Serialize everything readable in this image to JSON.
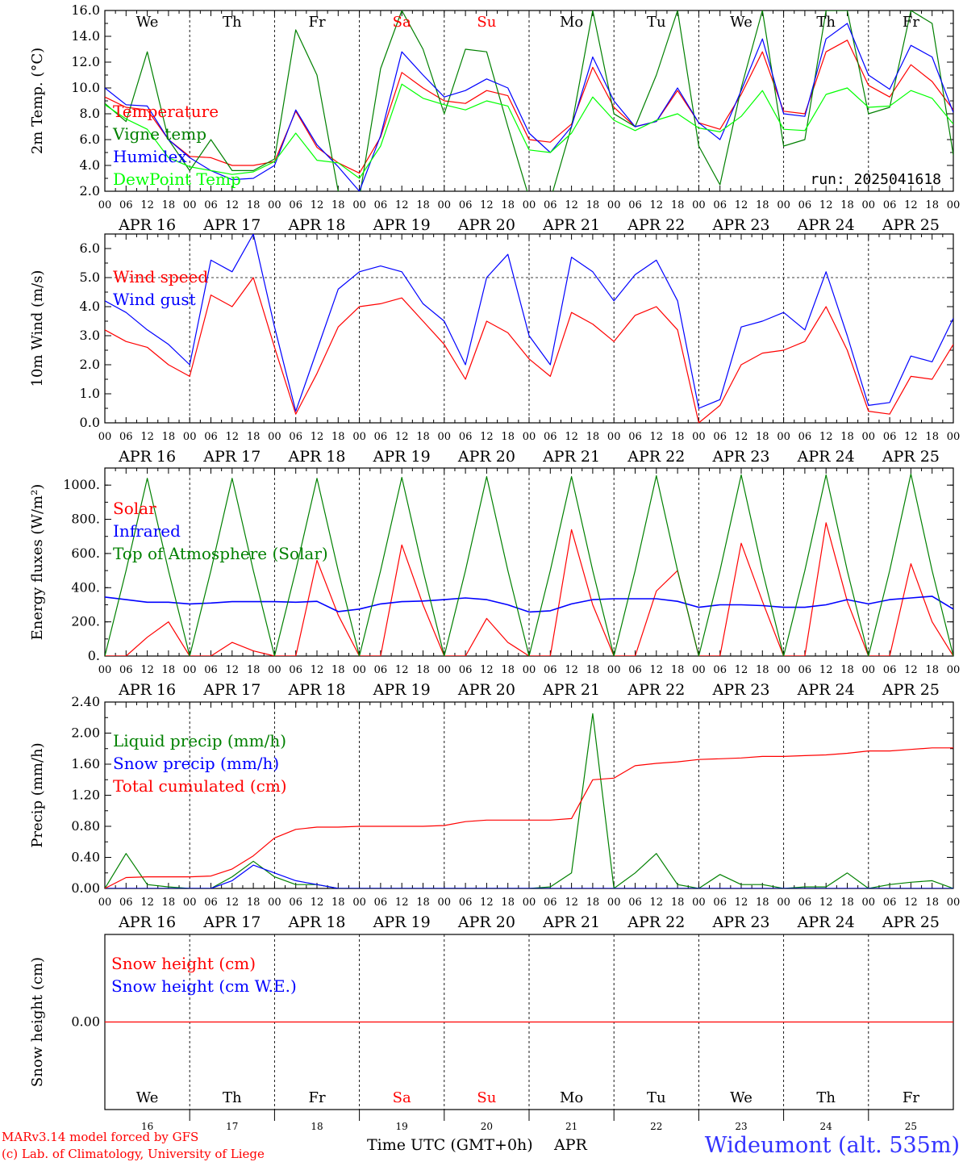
{
  "run_label": "run: 2025041618",
  "credit": [
    "MARv3.14 model forced by GFS",
    "(c) Lab. of Climatology, University of Liege"
  ],
  "station": "Wideumont (alt. 535m)",
  "xaxis_title": "Time UTC (GMT+0h)",
  "month": "APR",
  "days": [
    {
      "date": "APR 16",
      "num": "16",
      "name": "We",
      "weekend": false
    },
    {
      "date": "APR 17",
      "num": "17",
      "name": "Th",
      "weekend": false
    },
    {
      "date": "APR 18",
      "num": "18",
      "name": "Fr",
      "weekend": false
    },
    {
      "date": "APR 19",
      "num": "19",
      "name": "Sa",
      "weekend": true
    },
    {
      "date": "APR 20",
      "num": "20",
      "name": "Su",
      "weekend": true
    },
    {
      "date": "APR 21",
      "num": "21",
      "name": "Mo",
      "weekend": false
    },
    {
      "date": "APR 22",
      "num": "22",
      "name": "Tu",
      "weekend": false
    },
    {
      "date": "APR 23",
      "num": "23",
      "name": "We",
      "weekend": false
    },
    {
      "date": "APR 24",
      "num": "24",
      "name": "Th",
      "weekend": false
    },
    {
      "date": "APR 25",
      "num": "25",
      "name": "Fr",
      "weekend": false
    }
  ],
  "hour_ticks": [
    "00",
    "06",
    "12",
    "18"
  ],
  "last_tick": "00",
  "colors": {
    "red": "#ff0000",
    "green": "#008000",
    "blue": "#0000ff",
    "lime": "#00ff00",
    "title_blue": "#3333ff"
  },
  "chart_data": [
    {
      "type": "line",
      "ylabel": "2m Temp. (°C)",
      "ylim": [
        2.0,
        16.0
      ],
      "yticks": [
        "2.0",
        "4.0",
        "6.0",
        "8.0",
        "10.0",
        "12.0",
        "14.0",
        "16.0"
      ],
      "show_day_names": true,
      "x_unit": "hours since APR 16 00 UTC (every 6 h)",
      "series": [
        {
          "name": "Temperature",
          "color": "#ff0000",
          "values": [
            9.3,
            8.5,
            8.3,
            6.0,
            4.7,
            4.6,
            4.0,
            4.0,
            4.3,
            8.2,
            5.4,
            4.2,
            3.4,
            6.2,
            11.2,
            10.0,
            9.0,
            8.8,
            9.8,
            9.4,
            6.0,
            5.8,
            7.2,
            11.6,
            8.5,
            7.0,
            7.4,
            9.8,
            7.3,
            6.8,
            9.5,
            12.8,
            8.2,
            8.0,
            12.8,
            13.7,
            10.2,
            9.3,
            11.8,
            10.5,
            8.3
          ]
        },
        {
          "name": "Vigne temp",
          "color": "#008000",
          "values": [
            8.8,
            7.4,
            12.8,
            6.0,
            3.6,
            6.0,
            3.6,
            3.6,
            4.5,
            14.5,
            11.0,
            2.0,
            1.5,
            11.5,
            16.0,
            13.0,
            8.0,
            13.0,
            12.8,
            7.0,
            1.5,
            1.3,
            7.0,
            16.0,
            8.0,
            7.0,
            11.0,
            16.0,
            5.5,
            2.5,
            10.0,
            16.0,
            5.5,
            6.0,
            16.0,
            16.0,
            8.0,
            8.5,
            16.0,
            15.0,
            4.8
          ]
        },
        {
          "name": "Humidex",
          "color": "#0000ff",
          "values": [
            10.0,
            8.7,
            8.6,
            6.0,
            4.6,
            3.6,
            2.9,
            3.0,
            4.0,
            8.3,
            5.6,
            3.9,
            2.0,
            6.3,
            12.8,
            11.0,
            9.3,
            9.8,
            10.7,
            10.0,
            6.5,
            5.0,
            7.0,
            12.4,
            9.0,
            7.0,
            7.4,
            10.0,
            7.3,
            6.0,
            9.8,
            13.8,
            8.0,
            7.8,
            13.8,
            15.0,
            11.0,
            9.9,
            13.3,
            12.4,
            8.1
          ]
        },
        {
          "name": "DewPoint Temp",
          "color": "#00ff00",
          "values": [
            8.7,
            7.6,
            6.8,
            4.6,
            3.9,
            3.6,
            3.3,
            3.5,
            4.3,
            6.5,
            4.4,
            4.2,
            3.0,
            5.5,
            10.3,
            9.2,
            8.7,
            8.3,
            9.0,
            8.6,
            5.2,
            5.0,
            6.5,
            9.3,
            7.5,
            6.7,
            7.5,
            8.0,
            6.9,
            6.6,
            7.8,
            9.8,
            6.8,
            6.7,
            9.5,
            10.0,
            8.5,
            8.6,
            9.8,
            9.2,
            7.2
          ]
        }
      ]
    },
    {
      "type": "line",
      "ylabel": "10m Wind (m/s)",
      "ylim": [
        0.0,
        6.5
      ],
      "yticks": [
        "0.0",
        "1.0",
        "2.0",
        "3.0",
        "4.0",
        "5.0",
        "6.0"
      ],
      "hline": 5.0,
      "show_day_names": false,
      "x_unit": "hours since APR 16 00 UTC (every 6 h)",
      "series": [
        {
          "name": "Wind speed",
          "color": "#ff0000",
          "values": [
            3.2,
            2.8,
            2.6,
            2.0,
            1.6,
            4.4,
            4.0,
            5.0,
            2.6,
            0.3,
            1.7,
            3.3,
            4.0,
            4.1,
            4.3,
            3.5,
            2.7,
            1.5,
            3.5,
            3.1,
            2.2,
            1.6,
            3.8,
            3.4,
            2.8,
            3.7,
            4.0,
            3.2,
            0.0,
            0.6,
            2.0,
            2.4,
            2.5,
            2.8,
            4.0,
            2.5,
            0.4,
            0.3,
            1.6,
            1.5,
            2.7
          ]
        },
        {
          "name": "Wind gust",
          "color": "#0000ff",
          "values": [
            4.2,
            3.8,
            3.2,
            2.7,
            2.0,
            5.6,
            5.2,
            6.5,
            3.3,
            0.4,
            2.5,
            4.6,
            5.2,
            5.4,
            5.2,
            4.1,
            3.5,
            2.0,
            5.0,
            5.8,
            3.0,
            2.0,
            5.7,
            5.2,
            4.2,
            5.1,
            5.6,
            4.2,
            0.5,
            0.8,
            3.3,
            3.5,
            3.8,
            3.2,
            5.2,
            3.0,
            0.6,
            0.7,
            2.3,
            2.1,
            3.6
          ]
        }
      ]
    },
    {
      "type": "line",
      "ylabel": "Energy fluxes (W/m²)",
      "ylim": [
        0,
        1100
      ],
      "yticks": [
        "0.",
        "200.",
        "400.",
        "600.",
        "800.",
        "1000."
      ],
      "show_day_names": false,
      "x_unit": "hours since APR 16 00 UTC (every 6 h)",
      "series": [
        {
          "name": "Solar",
          "color": "#ff0000",
          "values": [
            0,
            0,
            110,
            200,
            0,
            0,
            80,
            30,
            0,
            0,
            560,
            240,
            0,
            0,
            650,
            300,
            0,
            0,
            220,
            80,
            0,
            0,
            740,
            300,
            0,
            0,
            380,
            500,
            0,
            0,
            660,
            320,
            0,
            0,
            780,
            320,
            0,
            0,
            540,
            200,
            0
          ]
        },
        {
          "name": "Infrared",
          "color": "#0000ff",
          "values": [
            345,
            330,
            315,
            315,
            305,
            310,
            318,
            318,
            318,
            315,
            320,
            260,
            275,
            305,
            318,
            322,
            330,
            340,
            330,
            300,
            258,
            265,
            305,
            330,
            335,
            335,
            335,
            320,
            285,
            300,
            300,
            295,
            285,
            285,
            300,
            330,
            305,
            330,
            340,
            350,
            275
          ]
        },
        {
          "name": "Top of Atmosphere (Solar)",
          "color": "#008000",
          "values": [
            0,
            500,
            1040,
            500,
            0,
            500,
            1040,
            500,
            0,
            500,
            1040,
            500,
            0,
            500,
            1045,
            500,
            0,
            500,
            1050,
            500,
            0,
            500,
            1050,
            500,
            0,
            500,
            1055,
            500,
            0,
            500,
            1060,
            500,
            0,
            500,
            1060,
            500,
            0,
            500,
            1065,
            500,
            0
          ]
        }
      ]
    },
    {
      "type": "line",
      "ylabel": "Precip (mm/h)",
      "ylim": [
        0.0,
        2.4
      ],
      "yticks": [
        "0.00",
        "0.40",
        "0.80",
        "1.20",
        "1.60",
        "2.00",
        "2.40"
      ],
      "show_day_names": false,
      "x_unit": "hours since APR 16 00 UTC (every 6 h)",
      "series": [
        {
          "name": "Liquid precip (mm/h)",
          "color": "#008000",
          "values": [
            0,
            0.45,
            0.05,
            0.02,
            0,
            0,
            0.15,
            0.35,
            0.15,
            0.05,
            0.05,
            0,
            0,
            0,
            0,
            0,
            0,
            0,
            0,
            0,
            0,
            0.02,
            0.2,
            2.25,
            0,
            0.2,
            0.45,
            0.05,
            0,
            0.18,
            0.05,
            0.05,
            0,
            0.02,
            0.02,
            0.2,
            0,
            0.05,
            0.08,
            0.1,
            0
          ]
        },
        {
          "name": "Snow precip (mm/h)",
          "color": "#0000ff",
          "values": [
            0,
            0,
            0,
            0,
            0,
            0,
            0.1,
            0.3,
            0.2,
            0.1,
            0.05,
            0,
            0,
            0,
            0,
            0,
            0,
            0,
            0,
            0,
            0,
            0,
            0,
            0,
            0,
            0,
            0,
            0,
            0,
            0,
            0,
            0,
            0,
            0,
            0,
            0,
            0,
            0,
            0,
            0,
            0
          ]
        },
        {
          "name": "Total cumulated (cm)",
          "color": "#ff0000",
          "values": [
            0,
            0.14,
            0.15,
            0.15,
            0.15,
            0.16,
            0.25,
            0.42,
            0.65,
            0.76,
            0.79,
            0.79,
            0.8,
            0.8,
            0.8,
            0.8,
            0.81,
            0.86,
            0.88,
            0.88,
            0.88,
            0.88,
            0.9,
            1.4,
            1.42,
            1.58,
            1.61,
            1.63,
            1.66,
            1.67,
            1.68,
            1.7,
            1.7,
            1.71,
            1.72,
            1.74,
            1.77,
            1.77,
            1.79,
            1.81,
            1.81
          ]
        }
      ]
    },
    {
      "type": "line",
      "ylabel": "Snow height (cm)",
      "ylim": [
        -1.0,
        1.0
      ],
      "yticks": [
        "0.00"
      ],
      "show_day_names": true,
      "x_unit": "hours since APR 16 00 UTC (every 6 h)",
      "series": [
        {
          "name": "Snow height (cm)",
          "color": "#ff0000",
          "values": [
            0,
            0,
            0,
            0,
            0,
            0,
            0,
            0,
            0,
            0,
            0,
            0,
            0,
            0,
            0,
            0,
            0,
            0,
            0,
            0,
            0,
            0,
            0,
            0,
            0,
            0,
            0,
            0,
            0,
            0,
            0,
            0,
            0,
            0,
            0,
            0,
            0,
            0,
            0,
            0,
            0
          ]
        },
        {
          "name": "Snow height (cm W.E.)",
          "color": "#0000ff",
          "values": []
        }
      ]
    }
  ]
}
